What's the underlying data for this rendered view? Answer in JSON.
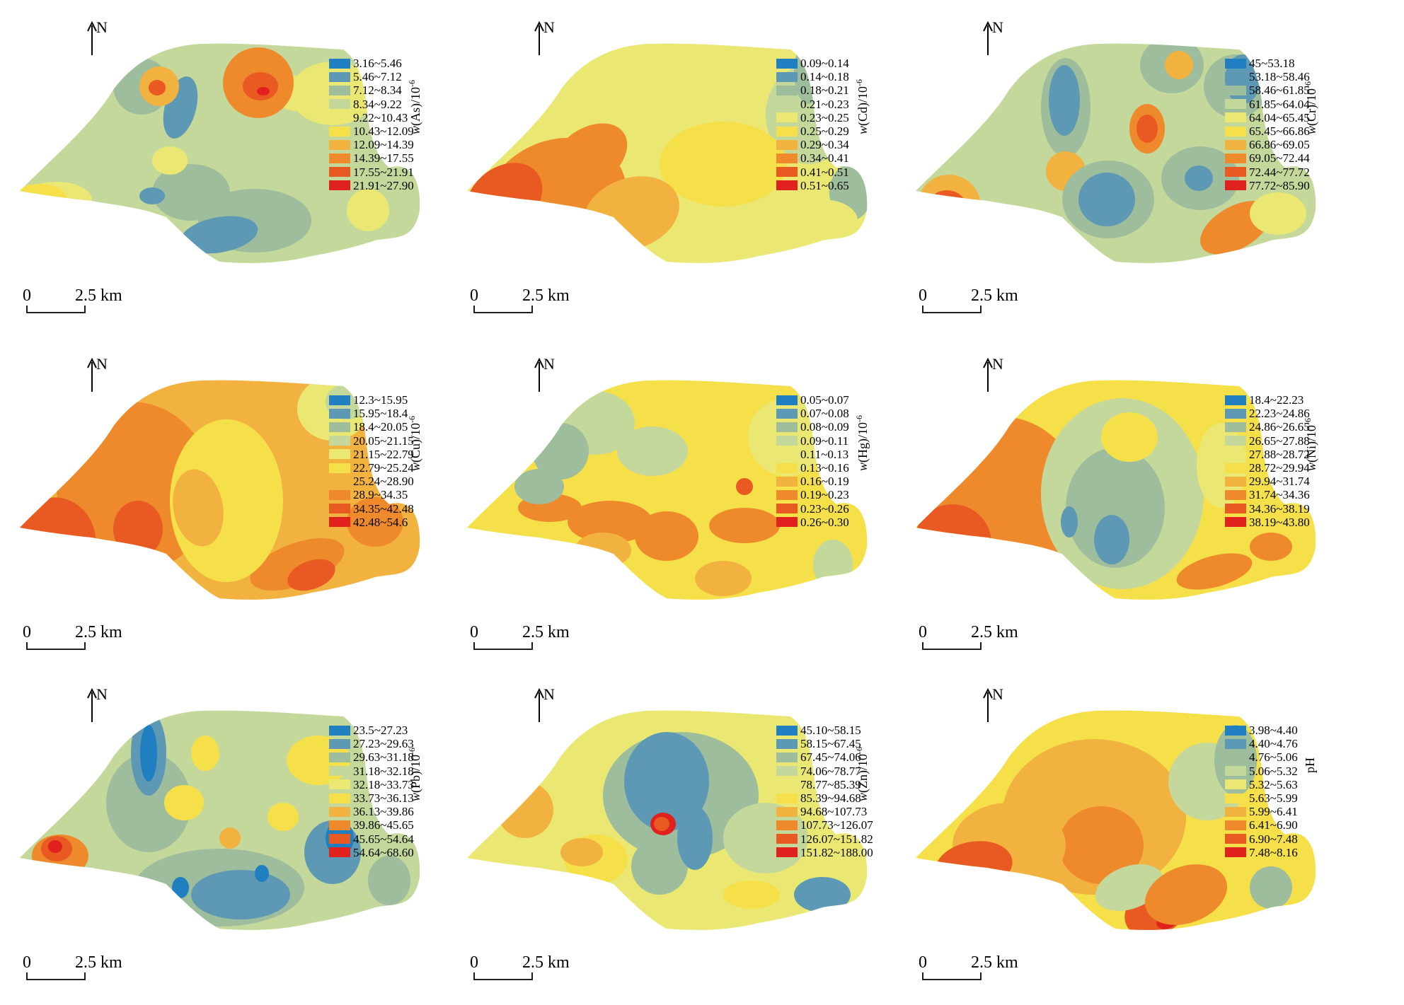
{
  "north_label": "N",
  "scale": {
    "zero": "0",
    "distance": "2.5 km"
  },
  "colors": [
    "#1f7fc0",
    "#5d99b4",
    "#9dbd9c",
    "#c5d89b",
    "#eae873",
    "#f6e04a",
    "#f2b240",
    "#ee8a2c",
    "#e85a22",
    "#e0211e"
  ],
  "panels": [
    {
      "id": "as",
      "unit_var": "w",
      "unit_text": "(As)/10",
      "unit_sup": "-6",
      "ranges": [
        "3.16~5.46",
        "5.46~7.12",
        "7.12~8.34",
        "8.34~9.22",
        "9.22~10.43",
        "10.43~12.09",
        "12.09~14.39",
        "14.39~17.55",
        "17.55~21.91",
        "21.91~27.90"
      ],
      "base_class": 3
    },
    {
      "id": "cd",
      "unit_var": "w",
      "unit_text": "(Cd)/10",
      "unit_sup": "-6",
      "ranges": [
        "0.09~0.14",
        "0.14~0.18",
        "0.18~0.21",
        "0.21~0.23",
        "0.23~0.25",
        "0.25~0.29",
        "0.29~0.34",
        "0.34~0.41",
        "0.41~0.51",
        "0.51~0.65"
      ],
      "base_class": 4
    },
    {
      "id": "cr",
      "unit_var": "w",
      "unit_text": "(Cr)/10",
      "unit_sup": "-6",
      "ranges": [
        "45~53.18",
        "53.18~58.46",
        "58.46~61.85",
        "61.85~64.04",
        "64.04~65.45",
        "65.45~66.86",
        "66.86~69.05",
        "69.05~72.44",
        "72.44~77.72",
        "77.72~85.90"
      ],
      "base_class": 3
    },
    {
      "id": "cu",
      "unit_var": "w",
      "unit_text": "(Cu)/10",
      "unit_sup": "-6",
      "ranges": [
        "12.3~15.95",
        "15.95~18.4",
        "18.4~20.05",
        "20.05~21.15",
        "21.15~22.79",
        "22.79~25.24",
        "25.24~28.90",
        "28.9~34.35",
        "34.35~42.48",
        "42.48~54.6"
      ],
      "base_class": 6
    },
    {
      "id": "hg",
      "unit_var": "w",
      "unit_text": "(Hg)/10",
      "unit_sup": "-6",
      "ranges": [
        "0.05~0.07",
        "0.07~0.08",
        "0.08~0.09",
        "0.09~0.11",
        "0.11~0.13",
        "0.13~0.16",
        "0.16~0.19",
        "0.19~0.23",
        "0.23~0.26",
        "0.26~0.30"
      ],
      "base_class": 5
    },
    {
      "id": "ni",
      "unit_var": "w",
      "unit_text": "(Ni)/10",
      "unit_sup": "-6",
      "ranges": [
        "18.4~22.23",
        "22.23~24.86",
        "24.86~26.65",
        "26.65~27.88",
        "27.88~28.72",
        "28.72~29.94",
        "29.94~31.74",
        "31.74~34.36",
        "34.36~38.19",
        "38.19~43.80"
      ],
      "base_class": 5
    },
    {
      "id": "pb",
      "unit_var": "w",
      "unit_text": "(Pb)/10",
      "unit_sup": "-6",
      "ranges": [
        "23.5~27.23",
        "27.23~29.63",
        "29.63~31.18",
        "31.18~32.18",
        "32.18~33.73",
        "33.73~36.13",
        "36.13~39.86",
        "39.86~45.65",
        "45.65~54.64",
        "54.64~68.60"
      ],
      "base_class": 3
    },
    {
      "id": "zn",
      "unit_var": "w",
      "unit_text": "(Zn)/10",
      "unit_sup": "-6",
      "ranges": [
        "45.10~58.15",
        "58.15~67.45",
        "67.45~74.06",
        "74.06~78.77",
        "78.77~85.39",
        "85.39~94.68",
        "94.68~107.73",
        "107.73~126.07",
        "126.07~151.82",
        "151.82~188.00"
      ],
      "base_class": 4
    },
    {
      "id": "ph",
      "unit_var": "",
      "unit_text": "pH",
      "unit_sup": "",
      "ranges": [
        "3.98~4.40",
        "4.40~4.76",
        "4.76~5.06",
        "5.06~5.32",
        "5.32~5.63",
        "5.63~5.99",
        "5.99~6.41",
        "6.41~6.90",
        "6.90~7.48",
        "7.48~8.16"
      ],
      "base_class": 5
    }
  ]
}
